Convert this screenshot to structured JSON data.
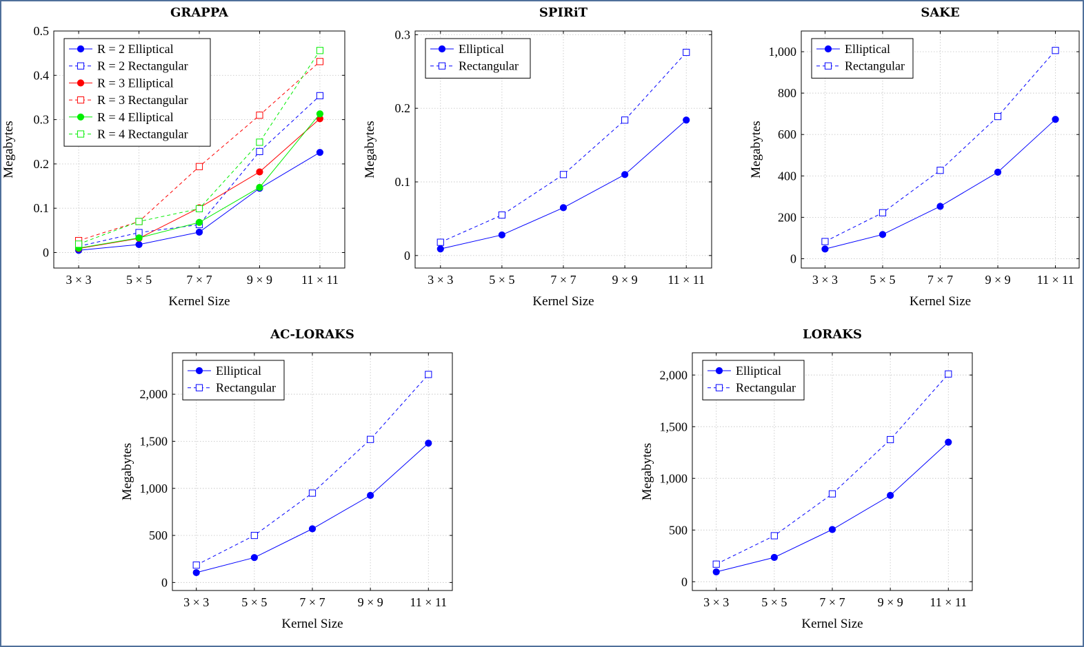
{
  "colors": {
    "blue": "#0000ff",
    "red": "#ff0000",
    "green": "#00ee00",
    "grid": "#c8c8c8",
    "frame": "#4f6f9a"
  },
  "chart_data": [
    {
      "type": "line",
      "title": "GRAPPA",
      "xlabel": "Kernel Size",
      "ylabel": "Megabytes",
      "categories": [
        "3 × 3",
        "5 × 5",
        "7 × 7",
        "9 × 9",
        "11 × 11"
      ],
      "ylim": [
        -0.035,
        0.5
      ],
      "yticks": [
        0,
        0.1,
        0.2,
        0.3,
        0.4,
        0.5
      ],
      "ytick_labels": [
        "0",
        "0.1",
        "0.2",
        "0.3",
        "0.4",
        "0.5"
      ],
      "grid": true,
      "legend_position": "top-left",
      "series": [
        {
          "name": "R = 2   Elliptical",
          "color": "blue",
          "style": "solid",
          "marker": "dot",
          "values": [
            0.005,
            0.018,
            0.046,
            0.145,
            0.226
          ]
        },
        {
          "name": "R = 2   Rectangular",
          "color": "blue",
          "style": "dashed",
          "marker": "square",
          "values": [
            0.014,
            0.045,
            0.063,
            0.228,
            0.354
          ]
        },
        {
          "name": "R = 3   Elliptical",
          "color": "red",
          "style": "solid",
          "marker": "dot",
          "values": [
            0.009,
            0.032,
            0.101,
            0.182,
            0.302
          ]
        },
        {
          "name": "R = 3   Rectangular",
          "color": "red",
          "style": "dashed",
          "marker": "square",
          "values": [
            0.027,
            0.07,
            0.194,
            0.31,
            0.431
          ]
        },
        {
          "name": "R = 4   Elliptical",
          "color": "green",
          "style": "solid",
          "marker": "dot",
          "values": [
            0.01,
            0.033,
            0.068,
            0.147,
            0.313
          ]
        },
        {
          "name": "R = 4   Rectangular",
          "color": "green",
          "style": "dashed",
          "marker": "square",
          "values": [
            0.019,
            0.07,
            0.099,
            0.249,
            0.456
          ]
        }
      ]
    },
    {
      "type": "line",
      "title": "SPIRiT",
      "xlabel": "Kernel Size",
      "ylabel": "Megabytes",
      "categories": [
        "3 × 3",
        "5 × 5",
        "7 × 7",
        "9 × 9",
        "11 × 11"
      ],
      "ylim": [
        -0.017,
        0.305
      ],
      "yticks": [
        0,
        0.1,
        0.2,
        0.3
      ],
      "ytick_labels": [
        "0",
        "0.1",
        "0.2",
        "0.3"
      ],
      "grid": true,
      "legend_position": "top-left",
      "series": [
        {
          "name": "Elliptical",
          "color": "blue",
          "style": "solid",
          "marker": "dot",
          "values": [
            0.009,
            0.028,
            0.065,
            0.11,
            0.184
          ]
        },
        {
          "name": "Rectangular",
          "color": "blue",
          "style": "dashed",
          "marker": "square",
          "values": [
            0.018,
            0.055,
            0.11,
            0.184,
            0.276
          ]
        }
      ]
    },
    {
      "type": "line",
      "title": "SAKE",
      "xlabel": "Kernel Size",
      "ylabel": "Megabytes",
      "categories": [
        "3 × 3",
        "5 × 5",
        "7 × 7",
        "9 × 9",
        "11 × 11"
      ],
      "ylim": [
        -45,
        1100
      ],
      "yticks": [
        0,
        200,
        400,
        600,
        800,
        1000
      ],
      "ytick_labels": [
        "0",
        "200",
        "400",
        "600",
        "800",
        "1,000"
      ],
      "grid": true,
      "legend_position": "top-left",
      "series": [
        {
          "name": "Elliptical",
          "color": "blue",
          "style": "solid",
          "marker": "dot",
          "values": [
            47,
            117,
            253,
            418,
            673
          ]
        },
        {
          "name": "Rectangular",
          "color": "blue",
          "style": "dashed",
          "marker": "square",
          "values": [
            83,
            222,
            427,
            687,
            1006
          ]
        }
      ]
    },
    {
      "type": "line",
      "title": "AC-LORAKS",
      "xlabel": "Kernel Size",
      "ylabel": "Megabytes",
      "categories": [
        "3 × 3",
        "5 × 5",
        "7 × 7",
        "9 × 9",
        "11 × 11"
      ],
      "ylim": [
        -85,
        2440
      ],
      "yticks": [
        0,
        500,
        1000,
        1500,
        2000
      ],
      "ytick_labels": [
        "0",
        "500",
        "1,000",
        "1,500",
        "2,000"
      ],
      "grid": true,
      "legend_position": "top-left",
      "series": [
        {
          "name": "Elliptical",
          "color": "blue",
          "style": "solid",
          "marker": "dot",
          "values": [
            105,
            265,
            570,
            925,
            1480
          ]
        },
        {
          "name": "Rectangular",
          "color": "blue",
          "style": "dashed",
          "marker": "square",
          "values": [
            185,
            500,
            950,
            1520,
            2210
          ]
        }
      ]
    },
    {
      "type": "line",
      "title": "LORAKS",
      "xlabel": "Kernel Size",
      "ylabel": "Megabytes",
      "categories": [
        "3 × 3",
        "5 × 5",
        "7 × 7",
        "9 × 9",
        "11 × 11"
      ],
      "ylim": [
        -85,
        2215
      ],
      "yticks": [
        0,
        500,
        1000,
        1500,
        2000
      ],
      "ytick_labels": [
        "0",
        "500",
        "1,000",
        "1,500",
        "2,000"
      ],
      "grid": true,
      "legend_position": "top-left",
      "series": [
        {
          "name": "Elliptical",
          "color": "blue",
          "style": "solid",
          "marker": "dot",
          "values": [
            95,
            235,
            505,
            835,
            1350
          ]
        },
        {
          "name": "Rectangular",
          "color": "blue",
          "style": "dashed",
          "marker": "square",
          "values": [
            170,
            445,
            850,
            1375,
            2010
          ]
        }
      ]
    }
  ]
}
